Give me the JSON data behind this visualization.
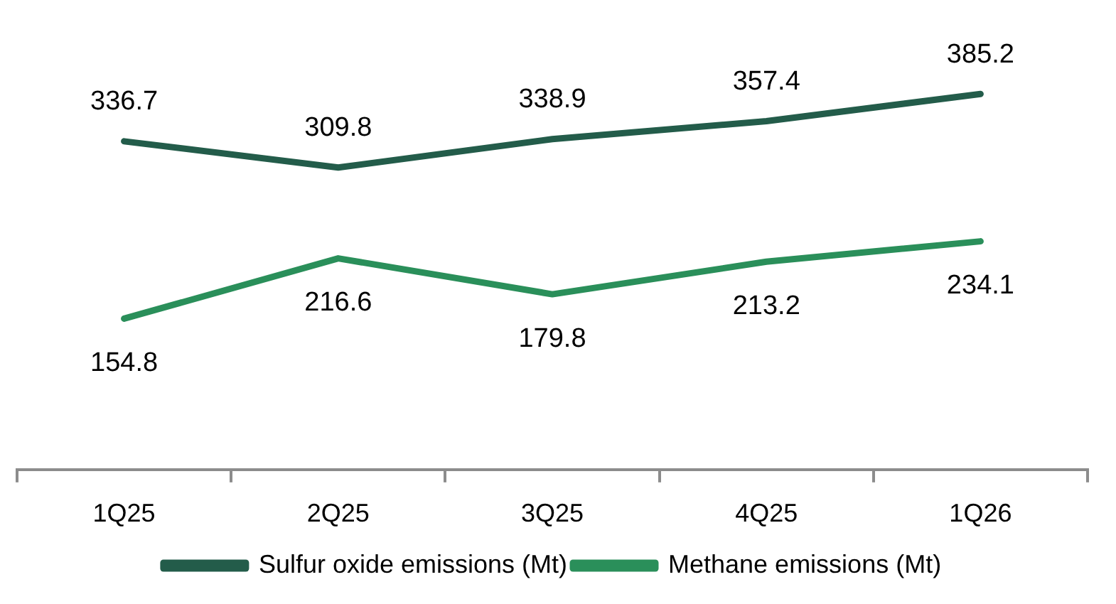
{
  "chart_data": {
    "type": "line",
    "categories": [
      "1Q25",
      "2Q25",
      "3Q25",
      "4Q25",
      "1Q26"
    ],
    "series": [
      {
        "name": "Sulfur oxide emissions (Mt)",
        "color": "#235c4a",
        "values": [
          336.7,
          309.8,
          338.9,
          357.4,
          385.2
        ]
      },
      {
        "name": "Methane emissions (Mt)",
        "color": "#2a8f5a",
        "values": [
          154.8,
          216.6,
          179.8,
          213.2,
          234.1
        ]
      }
    ],
    "tick_labels": "x",
    "data_labels": true,
    "legend": "bottom",
    "grid": false,
    "marker": "none",
    "line_style": "solid"
  }
}
